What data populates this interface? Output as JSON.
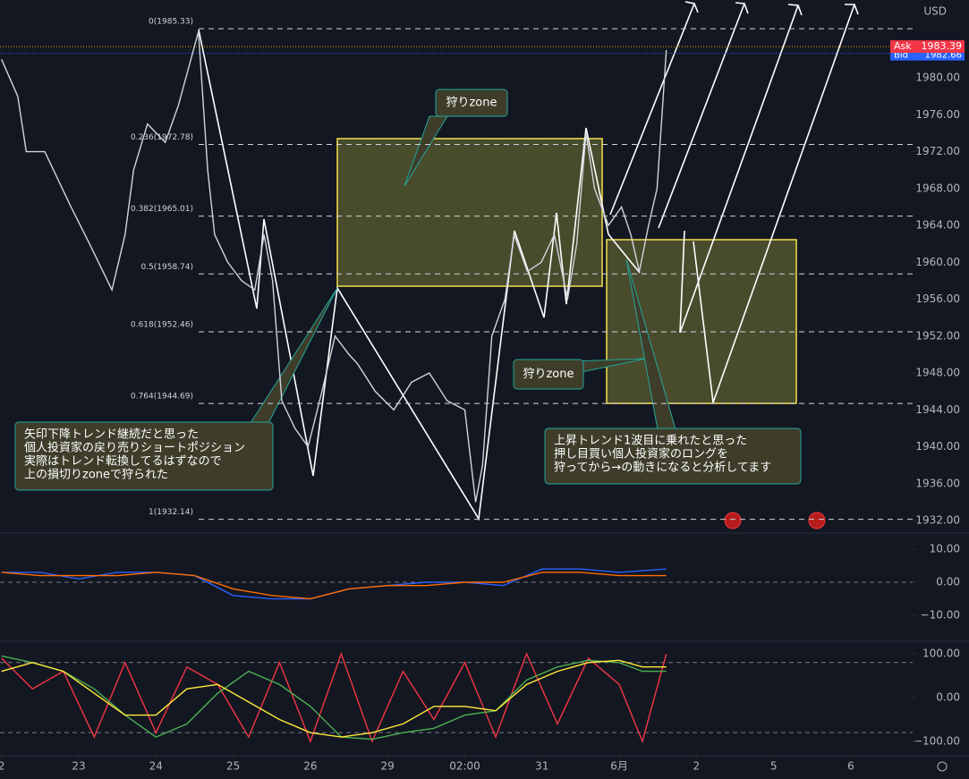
{
  "chart_data": [
    {
      "type": "line",
      "currency": "USD",
      "x": [
        0,
        0.21,
        0.32,
        0.56,
        0.9,
        1.14,
        1.43,
        1.6,
        1.71,
        1.89,
        2.12,
        2.29,
        2.55,
        2.67,
        2.76,
        2.93,
        3.11,
        3.28,
        3.4,
        3.51,
        3.63,
        3.8,
        3.97,
        4.15,
        4.32,
        4.5,
        4.61,
        4.84,
        5.08,
        5.31,
        5.54,
        5.77,
        6.0,
        6.14,
        6.23,
        6.35,
        6.52,
        6.64,
        6.81,
        6.99,
        7.16,
        7.33,
        7.45,
        7.57,
        7.68,
        7.86,
        8.03,
        8.15,
        8.26,
        8.38,
        8.49,
        8.61
      ],
      "series": [
        {
          "color": "#d1d4dc",
          "values": [
            1982,
            1978,
            1972,
            1972,
            1966,
            1962,
            1957,
            1963,
            1970,
            1975,
            1973,
            1977,
            1985,
            1970,
            1963,
            1960,
            1958,
            1957,
            1963,
            1958,
            1945,
            1942,
            1940,
            1946,
            1952,
            1950,
            1949,
            1946,
            1944,
            1947,
            1948,
            1945,
            1944,
            1934,
            1938,
            1952,
            1956,
            1963,
            1959,
            1960,
            1963,
            1956,
            1962,
            1974,
            1968,
            1964,
            1966,
            1963,
            1959,
            1964,
            1968,
            1983
          ]
        }
      ],
      "xlim": [
        -0.02,
        11.8
      ],
      "ylim": [
        1930.74,
        1988.44
      ],
      "yticks": [
        {
          "value": 1932,
          "label": "1932.00"
        },
        {
          "value": 1936,
          "label": "1936.00"
        },
        {
          "value": 1940,
          "label": "1940.00"
        },
        {
          "value": 1944,
          "label": "1944.00"
        },
        {
          "value": 1948,
          "label": "1948.00"
        },
        {
          "value": 1952,
          "label": "1952.00"
        },
        {
          "value": 1956,
          "label": "1956.00"
        },
        {
          "value": 1960,
          "label": "1960.00"
        },
        {
          "value": 1964,
          "label": "1964.00"
        },
        {
          "value": 1968,
          "label": "1968.00"
        },
        {
          "value": 1972,
          "label": "1972.00"
        },
        {
          "value": 1976,
          "label": "1976.00"
        },
        {
          "value": 1980,
          "label": "1980.00"
        }
      ],
      "fib_levels": [
        {
          "label": "0(1985.33)",
          "value": 1985.33
        },
        {
          "label": "0.236(1972.78)",
          "value": 1972.78
        },
        {
          "label": "0.382(1965.01)",
          "value": 1965.01
        },
        {
          "label": "0.5(1958.74)",
          "value": 1958.74
        },
        {
          "label": "0.618(1952.46)",
          "value": 1952.46
        },
        {
          "label": "0.764(1944.69)",
          "value": 1944.69
        },
        {
          "label": "1(1932.14)",
          "value": 1932.14
        }
      ],
      "ask": {
        "label": "Ask",
        "value": 1983.39
      },
      "bid": {
        "label": "Bid",
        "value": 1982.66
      },
      "annotations": [
        {
          "lines": [
            "狩りzone"
          ]
        },
        {
          "lines": [
            "狩りzone"
          ]
        },
        {
          "lines": [
            "矢印下降トレンド継続だと思った",
            "個人投資家の戻り売りショートポジション",
            "実際はトレンド転換してるはずなので",
            "上の損切りzoneで狩られた"
          ]
        },
        {
          "lines": [
            "上昇トレンド1波目に乗れたと思った",
            "押し目買い個人投資家のロングを",
            "狩ってから→の動きになると分析してます"
          ]
        }
      ]
    },
    {
      "type": "line",
      "x": [
        0,
        0.5,
        1,
        1.5,
        2,
        2.5,
        3,
        3.5,
        4,
        4.5,
        5,
        5.5,
        6,
        6.5,
        7,
        7.5,
        8,
        8.61
      ],
      "series": [
        {
          "color": "#2962ff",
          "values": [
            3,
            3,
            1,
            3,
            3,
            2,
            -4,
            -5,
            -5,
            -2,
            -1,
            0,
            0,
            -1,
            4,
            4,
            3,
            4
          ]
        },
        {
          "color": "#ff6d00",
          "values": [
            3,
            2,
            2,
            2,
            3,
            2,
            -2,
            -4,
            -5,
            -2,
            -1,
            -1,
            0,
            0,
            3,
            3,
            2,
            2
          ]
        }
      ],
      "xlim": [
        -0.02,
        11.8
      ],
      "ylim": [
        -17.8,
        14.3
      ],
      "bands": [
        0
      ],
      "yticks": [
        {
          "value": 10,
          "label": "10.00"
        },
        {
          "value": 0,
          "label": "0.00"
        },
        {
          "value": -10,
          "label": "−10.00"
        }
      ]
    },
    {
      "type": "line",
      "x": [
        0,
        0.4,
        0.8,
        1.2,
        1.6,
        2.0,
        2.4,
        2.8,
        3.2,
        3.6,
        4.0,
        4.4,
        4.8,
        5.2,
        5.6,
        6.0,
        6.4,
        6.8,
        7.2,
        7.6,
        8.0,
        8.3,
        8.61
      ],
      "series": [
        {
          "color": "#f23645",
          "values": [
            90,
            20,
            60,
            -90,
            80,
            -80,
            70,
            30,
            -90,
            80,
            -100,
            100,
            -100,
            60,
            -50,
            80,
            -90,
            100,
            -60,
            90,
            30,
            -100,
            100
          ]
        },
        {
          "color": "#4caf50",
          "values": [
            95,
            80,
            60,
            20,
            -40,
            -90,
            -60,
            10,
            60,
            30,
            -20,
            -90,
            -95,
            -80,
            -70,
            -40,
            -30,
            40,
            70,
            85,
            80,
            60,
            60
          ]
        },
        {
          "color": "#ffeb3b",
          "values": [
            60,
            80,
            60,
            10,
            -40,
            -40,
            20,
            30,
            -10,
            -50,
            -80,
            -90,
            -80,
            -60,
            -20,
            -20,
            -30,
            30,
            60,
            80,
            85,
            70,
            70
          ]
        }
      ],
      "xlim": [
        -0.02,
        11.8
      ],
      "ylim": [
        -132.7,
        128.6
      ],
      "bands": [
        80,
        -80
      ],
      "yticks": [
        {
          "value": 100,
          "label": "100.00"
        },
        {
          "value": 0,
          "label": "0.00"
        },
        {
          "value": -100,
          "label": "−100.00"
        }
      ],
      "xticks": [
        {
          "value": 0,
          "label": "2"
        },
        {
          "value": 1,
          "label": "23"
        },
        {
          "value": 2,
          "label": "24"
        },
        {
          "value": 3,
          "label": "25"
        },
        {
          "value": 4,
          "label": "26"
        },
        {
          "value": 5,
          "label": "29"
        },
        {
          "value": 6,
          "label": "02:00"
        },
        {
          "value": 7,
          "label": "31"
        },
        {
          "value": 8,
          "label": "6月"
        },
        {
          "value": 9,
          "label": "2"
        },
        {
          "value": 10,
          "label": "5"
        },
        {
          "value": 11,
          "label": "6"
        }
      ]
    }
  ]
}
